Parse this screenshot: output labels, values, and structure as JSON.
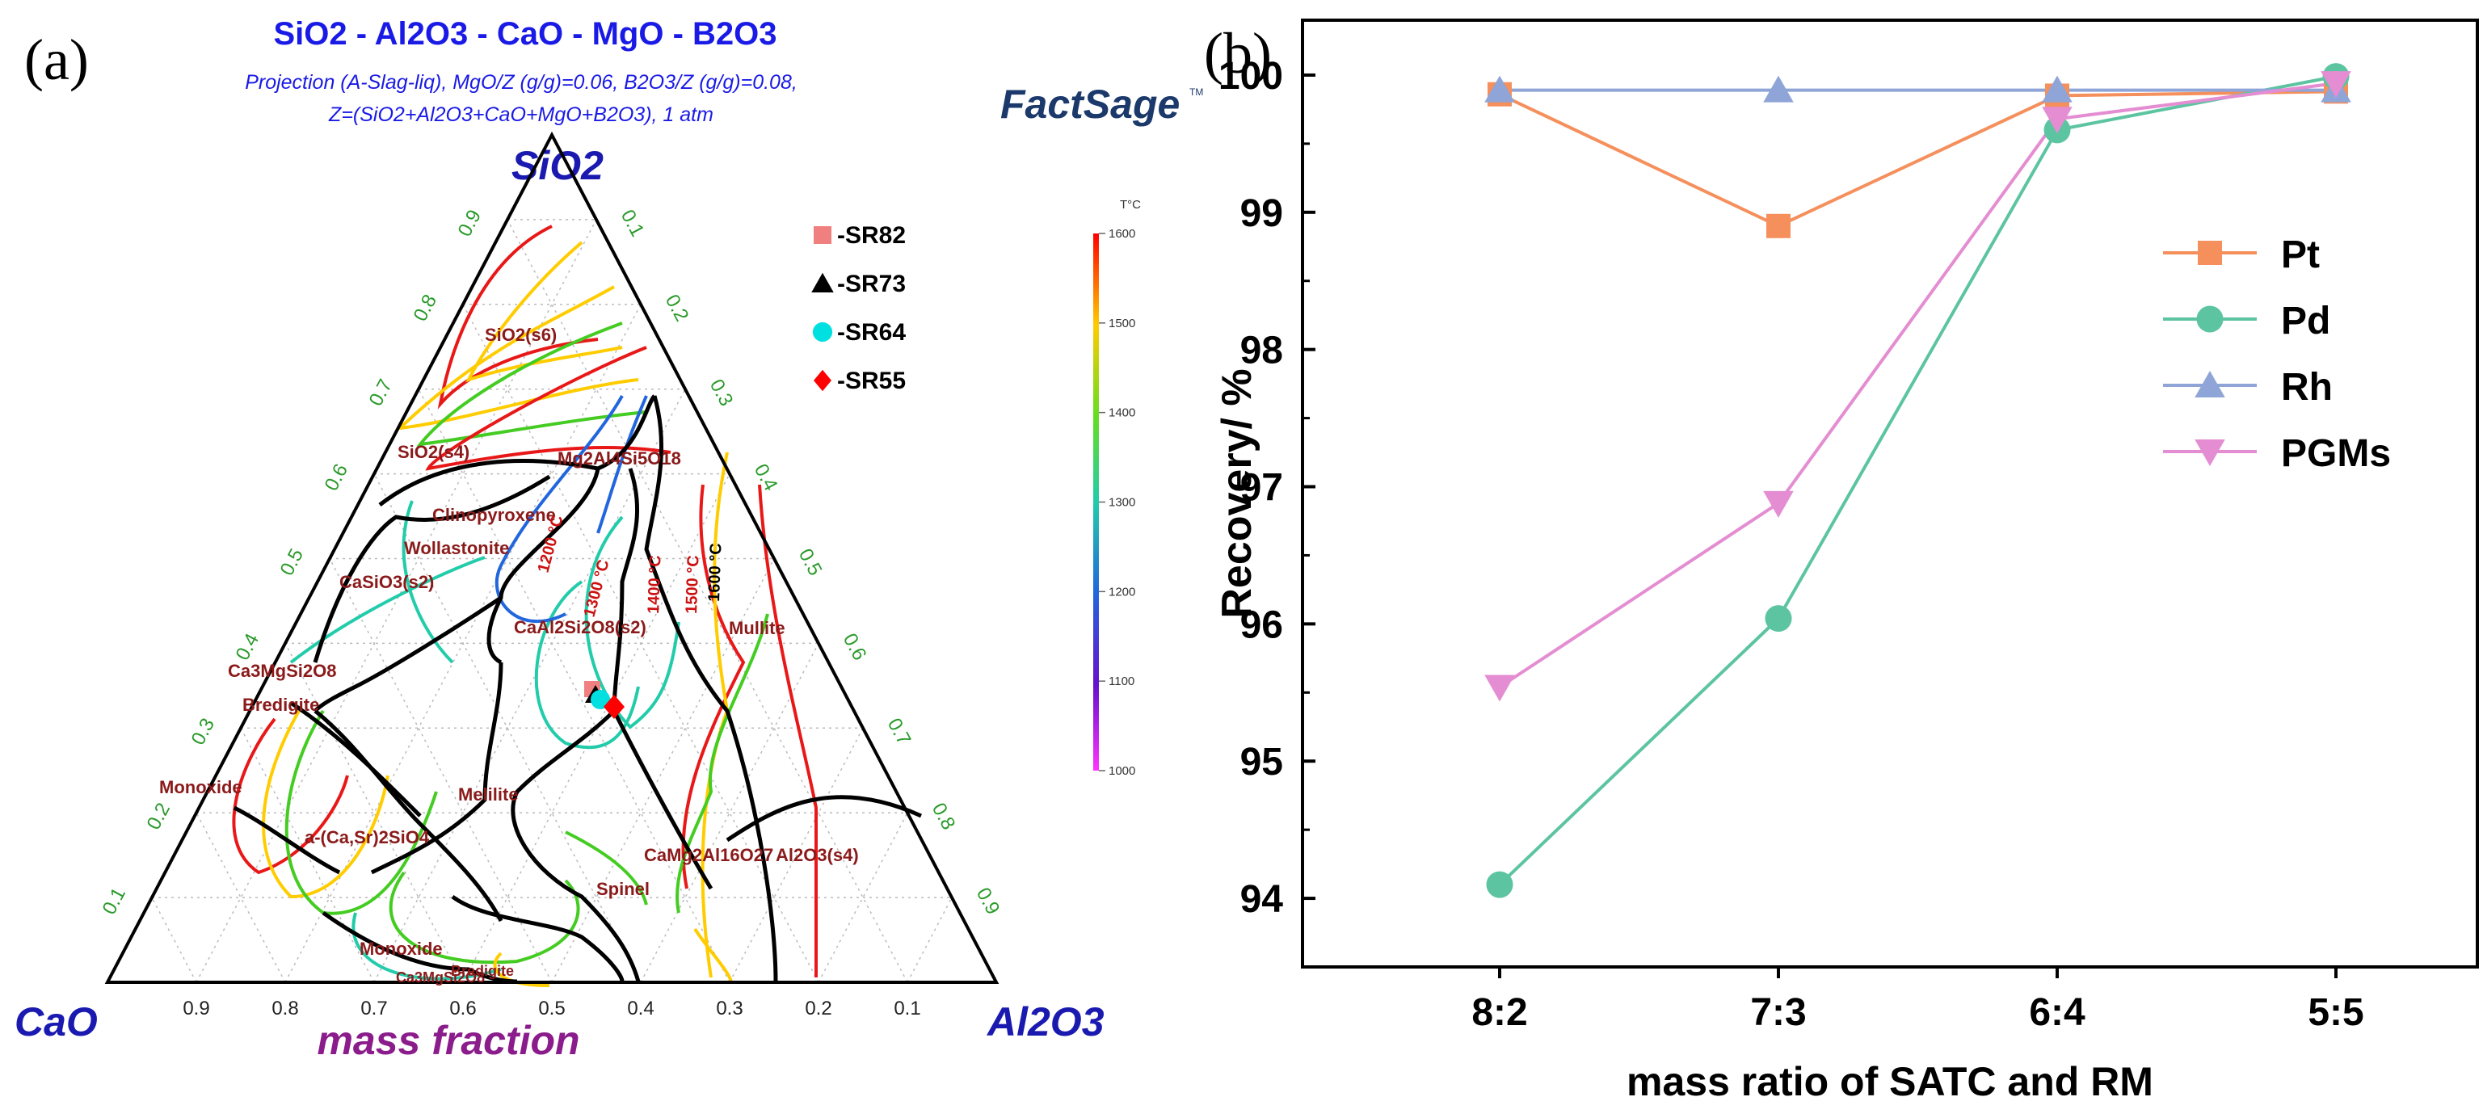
{
  "panel_a": {
    "label": "(a)",
    "title": "SiO2 - Al2O3 - CaO - MgO - B2O3",
    "subtitle1": "Projection (A-Slag-liq), MgO/Z (g/g)=0.06, B2O3/Z (g/g)=0.08,",
    "subtitle2": "Z=(SiO2+Al2O3+CaO+MgO+B2O3), 1 atm",
    "logo_text": "FactSage",
    "logo_tm": "TM",
    "apex_top": "SiO2",
    "apex_left": "CaO",
    "apex_right": "Al2O3",
    "bottom_label": "mass fraction",
    "ticks": [
      "0.9",
      "0.8",
      "0.7",
      "0.6",
      "0.5",
      "0.4",
      "0.3",
      "0.2",
      "0.1"
    ],
    "colorbar_unit": "T°C",
    "colorbar_ticks": [
      "1600",
      "1500",
      "1400",
      "1300",
      "1200",
      "1100",
      "1000"
    ],
    "legend": [
      {
        "label": "-SR82",
        "marker": "square",
        "color": "#f08080"
      },
      {
        "label": "-SR73",
        "marker": "triangle",
        "color": "#000000"
      },
      {
        "label": "-SR64",
        "marker": "circle",
        "color": "#00e0e0"
      },
      {
        "label": "-SR55",
        "marker": "diamond",
        "color": "#ff0000"
      }
    ],
    "phase_labels": [
      "SiO2(s6)",
      "SiO2(s4)",
      "Mg2Al4Si5O18",
      "Clinopyroxene",
      "Wollastonite",
      "CaSiO3(s2)",
      "CaAl2Si2O8(s2)",
      "Mullite",
      "Ca3MgSi2O8",
      "Bredigite",
      "Monoxide",
      "Melilite",
      "a-(Ca,Sr)2SiO4",
      "CaMg2Al16O27",
      "Al2O3(s4)",
      "Spinel",
      "Monoxide",
      "Ca3MgSi2O8",
      "Bredigite"
    ],
    "isotherm_labels": [
      "1200 °C",
      "1300 °C",
      "1400 °C",
      "1500 °C",
      "1600 °C"
    ]
  },
  "panel_b": {
    "label": "(b)"
  },
  "chart_data": {
    "type": "line",
    "title": "",
    "xlabel": "mass ratio of SATC and RM",
    "ylabel": "Recovery/ %",
    "categories": [
      "8:2",
      "7:3",
      "6:4",
      "5:5"
    ],
    "ylim": [
      93.5,
      100.4
    ],
    "yticks": [
      94,
      95,
      96,
      97,
      98,
      99,
      100
    ],
    "legend_position": "right",
    "series": [
      {
        "name": "Pt",
        "marker": "square",
        "color": "#f58f5c",
        "values": [
          99.86,
          98.9,
          99.85,
          99.88
        ]
      },
      {
        "name": "Pd",
        "marker": "circle",
        "color": "#5cc4a0",
        "values": [
          94.1,
          96.04,
          99.6,
          99.99
        ]
      },
      {
        "name": "Rh",
        "marker": "triangle",
        "color": "#8fa5d8",
        "values": [
          99.89,
          99.89,
          99.89,
          99.89
        ]
      },
      {
        "name": "PGMs",
        "marker": "triangle-down",
        "color": "#e48dd2",
        "values": [
          95.54,
          96.88,
          99.68,
          99.94
        ]
      }
    ]
  }
}
